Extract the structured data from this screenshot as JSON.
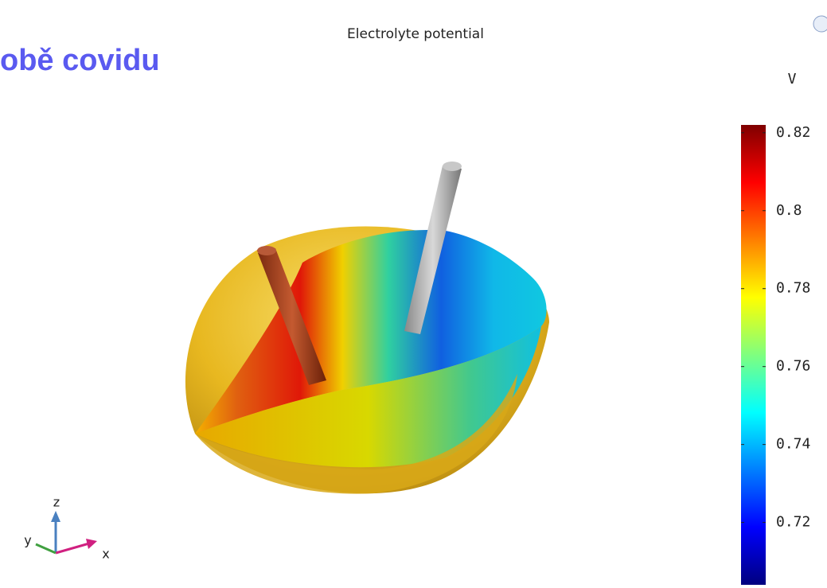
{
  "heading": "obě covidu",
  "plot": {
    "title": "Electrolyte potential",
    "axes": {
      "z": "z",
      "y": "y",
      "x": "x"
    }
  },
  "colorbar": {
    "unit": "V",
    "lim": [
      0.704,
      0.822
    ],
    "ticks": [
      0.72,
      0.74,
      0.76,
      0.78,
      0.8,
      0.82
    ],
    "colors": [
      "#00007f",
      "#0000ff",
      "#007fff",
      "#00ffff",
      "#7fff7f",
      "#ffff00",
      "#ff7f00",
      "#ff0000",
      "#7f0000"
    ]
  }
}
